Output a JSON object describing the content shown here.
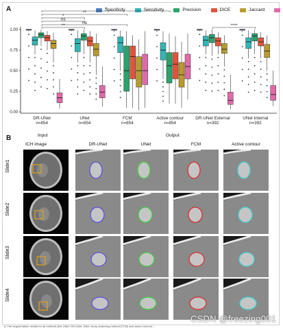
{
  "panel_a_label": "A",
  "panel_b_label": "B",
  "legend": [
    {
      "name": "Specificity",
      "color": "#4c7fc4"
    },
    {
      "name": "Sensitivity",
      "color": "#33b5b5"
    },
    {
      "name": "Precision",
      "color": "#2aa36b"
    },
    {
      "name": "DICE",
      "color": "#e0543b"
    },
    {
      "name": "Jaccard",
      "color": "#b99a2e"
    },
    {
      "name": "VOE",
      "color": "#e06aa8"
    }
  ],
  "chart_data": {
    "type": "box",
    "ylim": [
      0,
      1
    ],
    "yticks": [
      "0.00",
      "0.25",
      "0.50",
      "0.75",
      "1.00"
    ],
    "series_names": [
      "Specificity",
      "Sensitivity",
      "Precision",
      "DICE",
      "Jaccard",
      "VOE"
    ],
    "groups": [
      {
        "label": "DR-UNet",
        "n": "n=854",
        "boxes": [
          [
            0.98,
            1.0,
            1.0,
            1.0,
            1.0
          ],
          [
            0.7,
            0.81,
            0.87,
            0.91,
            0.99
          ],
          [
            0.8,
            0.9,
            0.94,
            0.96,
            1.0
          ],
          [
            0.75,
            0.86,
            0.9,
            0.93,
            0.98
          ],
          [
            0.6,
            0.77,
            0.83,
            0.87,
            0.96
          ],
          [
            0.04,
            0.11,
            0.17,
            0.23,
            0.4
          ]
        ]
      },
      {
        "label": "UNet",
        "n": "n=854",
        "boxes": [
          [
            0.98,
            1.0,
            1.0,
            1.0,
            1.0
          ],
          [
            0.6,
            0.73,
            0.83,
            0.89,
            0.99
          ],
          [
            0.7,
            0.87,
            0.92,
            0.95,
            1.0
          ],
          [
            0.6,
            0.8,
            0.86,
            0.91,
            0.98
          ],
          [
            0.45,
            0.68,
            0.76,
            0.83,
            0.95
          ],
          [
            0.06,
            0.17,
            0.24,
            0.32,
            0.55
          ]
        ]
      },
      {
        "label": "FCM",
        "n": "n=854",
        "boxes": [
          [
            0.97,
            1.0,
            1.0,
            1.0,
            1.0
          ],
          [
            0.5,
            0.72,
            0.84,
            0.91,
            0.99
          ],
          [
            0.05,
            0.25,
            0.5,
            0.8,
            0.98
          ],
          [
            0.05,
            0.4,
            0.67,
            0.8,
            0.93
          ],
          [
            0.02,
            0.3,
            0.5,
            0.67,
            0.88
          ],
          [
            0.05,
            0.33,
            0.5,
            0.7,
            0.98
          ]
        ]
      },
      {
        "label": "Active contour",
        "n": "n=854",
        "boxes": [
          [
            0.97,
            1.0,
            1.0,
            1.0,
            1.0
          ],
          [
            0.4,
            0.63,
            0.75,
            0.84,
            0.98
          ],
          [
            0.1,
            0.35,
            0.56,
            0.72,
            0.95
          ],
          [
            0.1,
            0.4,
            0.58,
            0.72,
            0.92
          ],
          [
            0.05,
            0.3,
            0.45,
            0.6,
            0.85
          ],
          [
            0.15,
            0.4,
            0.55,
            0.7,
            0.95
          ]
        ]
      },
      {
        "label": "DR-UNet External",
        "n": "n=392",
        "boxes": [
          [
            0.98,
            1.0,
            1.0,
            1.0,
            1.0
          ],
          [
            0.7,
            0.8,
            0.87,
            0.92,
            0.99
          ],
          [
            0.68,
            0.84,
            0.9,
            0.94,
            1.0
          ],
          [
            0.7,
            0.8,
            0.86,
            0.9,
            0.97
          ],
          [
            0.55,
            0.71,
            0.76,
            0.83,
            0.93
          ],
          [
            0.03,
            0.09,
            0.14,
            0.24,
            0.45
          ]
        ]
      },
      {
        "label": "UNet Internal",
        "n": "n=392",
        "boxes": [
          [
            0.97,
            1.0,
            1.0,
            1.0,
            1.0
          ],
          [
            0.65,
            0.77,
            0.85,
            0.9,
            0.99
          ],
          [
            0.7,
            0.86,
            0.92,
            0.95,
            1.0
          ],
          [
            0.65,
            0.8,
            0.85,
            0.9,
            0.97
          ],
          [
            0.5,
            0.66,
            0.74,
            0.82,
            0.93
          ],
          [
            0.07,
            0.14,
            0.21,
            0.32,
            0.5
          ]
        ]
      }
    ],
    "significance": [
      "*",
      "**",
      "*",
      "ns",
      "ns",
      "**",
      "****"
    ]
  },
  "panel_b": {
    "col_input": "Input",
    "col_output": "Output",
    "col_ich": "ICH image",
    "methods": [
      "DR-UNet",
      "UNet",
      "FCM",
      "Active contour"
    ],
    "method_colors": [
      "#5b4de0",
      "#3fcf3f",
      "#e02a2a",
      "#3fd6d6"
    ],
    "rows": [
      "Slide1",
      "Slide2",
      "Slide3",
      "Slide4"
    ]
  },
  "watermark": "CSDN @freezing001",
  "caption": "a, The segmentation results for all methods (the UNet, DR-UNet, UNet, fuzzy clustering method (FCM) and active contour) ..."
}
